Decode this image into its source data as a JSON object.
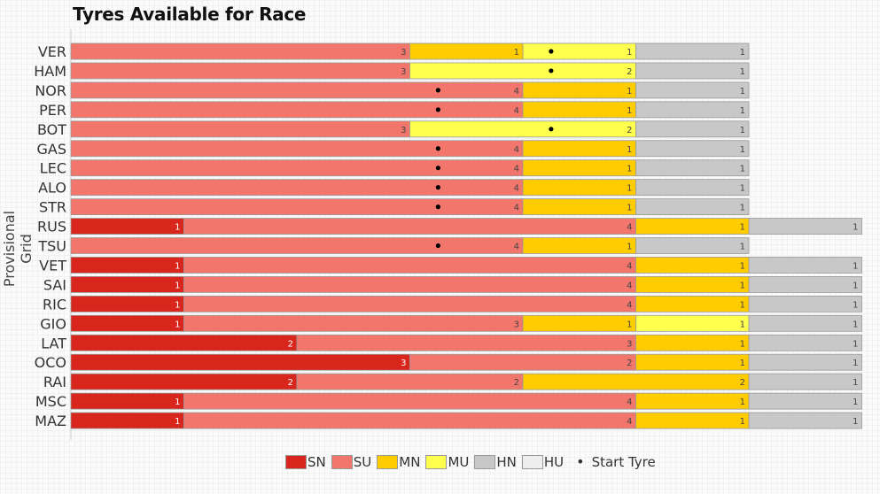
{
  "chart_data": {
    "type": "bar",
    "orientation": "horizontal",
    "stacked": true,
    "title": "Tyres Available for Race",
    "ylabel": "Provisional Grid",
    "xlabel": "",
    "colors": {
      "SN": "#d9261c",
      "SU": "#f2766b",
      "MN": "#ffcc00",
      "MU": "#ffff4d",
      "HN": "#c8c8c8",
      "HU": "#eeeeee"
    },
    "legend": [
      {
        "key": "SN",
        "label": "SN"
      },
      {
        "key": "SU",
        "label": "SU"
      },
      {
        "key": "MN",
        "label": "MN"
      },
      {
        "key": "MU",
        "label": "MU"
      },
      {
        "key": "HN",
        "label": "HN"
      },
      {
        "key": "HU",
        "label": "HU"
      }
    ],
    "start_tyre_label": "Start Tyre",
    "legend_position": "bottom",
    "drivers": [
      {
        "name": "VER",
        "segments": [
          [
            "SU",
            3
          ],
          [
            "MN",
            1
          ],
          [
            "MU",
            1
          ],
          [
            "HN",
            1
          ]
        ],
        "start": "MU"
      },
      {
        "name": "HAM",
        "segments": [
          [
            "SU",
            3
          ],
          [
            "MU",
            2
          ],
          [
            "HN",
            1
          ]
        ],
        "start": "MU"
      },
      {
        "name": "NOR",
        "segments": [
          [
            "SU",
            4
          ],
          [
            "MN",
            1
          ],
          [
            "HN",
            1
          ]
        ],
        "start": "SU"
      },
      {
        "name": "PER",
        "segments": [
          [
            "SU",
            4
          ],
          [
            "MN",
            1
          ],
          [
            "HN",
            1
          ]
        ],
        "start": "SU"
      },
      {
        "name": "BOT",
        "segments": [
          [
            "SU",
            3
          ],
          [
            "MU",
            2
          ],
          [
            "HN",
            1
          ]
        ],
        "start": "MU"
      },
      {
        "name": "GAS",
        "segments": [
          [
            "SU",
            4
          ],
          [
            "MN",
            1
          ],
          [
            "HN",
            1
          ]
        ],
        "start": "SU"
      },
      {
        "name": "LEC",
        "segments": [
          [
            "SU",
            4
          ],
          [
            "MN",
            1
          ],
          [
            "HN",
            1
          ]
        ],
        "start": "SU"
      },
      {
        "name": "ALO",
        "segments": [
          [
            "SU",
            4
          ],
          [
            "MN",
            1
          ],
          [
            "HN",
            1
          ]
        ],
        "start": "SU"
      },
      {
        "name": "STR",
        "segments": [
          [
            "SU",
            4
          ],
          [
            "MN",
            1
          ],
          [
            "HN",
            1
          ]
        ],
        "start": "SU"
      },
      {
        "name": "RUS",
        "segments": [
          [
            "SN",
            1
          ],
          [
            "SU",
            4
          ],
          [
            "MN",
            1
          ],
          [
            "HN",
            1
          ]
        ],
        "start": null
      },
      {
        "name": "TSU",
        "segments": [
          [
            "SU",
            4
          ],
          [
            "MN",
            1
          ],
          [
            "HN",
            1
          ]
        ],
        "start": "SU"
      },
      {
        "name": "VET",
        "segments": [
          [
            "SN",
            1
          ],
          [
            "SU",
            4
          ],
          [
            "MN",
            1
          ],
          [
            "HN",
            1
          ]
        ],
        "start": null
      },
      {
        "name": "SAI",
        "segments": [
          [
            "SN",
            1
          ],
          [
            "SU",
            4
          ],
          [
            "MN",
            1
          ],
          [
            "HN",
            1
          ]
        ],
        "start": null
      },
      {
        "name": "RIC",
        "segments": [
          [
            "SN",
            1
          ],
          [
            "SU",
            4
          ],
          [
            "MN",
            1
          ],
          [
            "HN",
            1
          ]
        ],
        "start": null
      },
      {
        "name": "GIO",
        "segments": [
          [
            "SN",
            1
          ],
          [
            "SU",
            3
          ],
          [
            "MN",
            1
          ],
          [
            "MU",
            1
          ],
          [
            "HN",
            1
          ]
        ],
        "start": null
      },
      {
        "name": "LAT",
        "segments": [
          [
            "SN",
            2
          ],
          [
            "SU",
            3
          ],
          [
            "MN",
            1
          ],
          [
            "HN",
            1
          ]
        ],
        "start": null
      },
      {
        "name": "OCO",
        "segments": [
          [
            "SN",
            3
          ],
          [
            "SU",
            2
          ],
          [
            "MN",
            1
          ],
          [
            "HN",
            1
          ]
        ],
        "start": null
      },
      {
        "name": "RAI",
        "segments": [
          [
            "SN",
            2
          ],
          [
            "SU",
            2
          ],
          [
            "MN",
            2
          ],
          [
            "HN",
            1
          ]
        ],
        "start": null
      },
      {
        "name": "MSC",
        "segments": [
          [
            "SN",
            1
          ],
          [
            "SU",
            4
          ],
          [
            "MN",
            1
          ],
          [
            "HN",
            1
          ]
        ],
        "start": null
      },
      {
        "name": "MAZ",
        "segments": [
          [
            "SN",
            1
          ],
          [
            "SU",
            4
          ],
          [
            "MN",
            1
          ],
          [
            "HN",
            1
          ]
        ],
        "start": null
      }
    ]
  }
}
